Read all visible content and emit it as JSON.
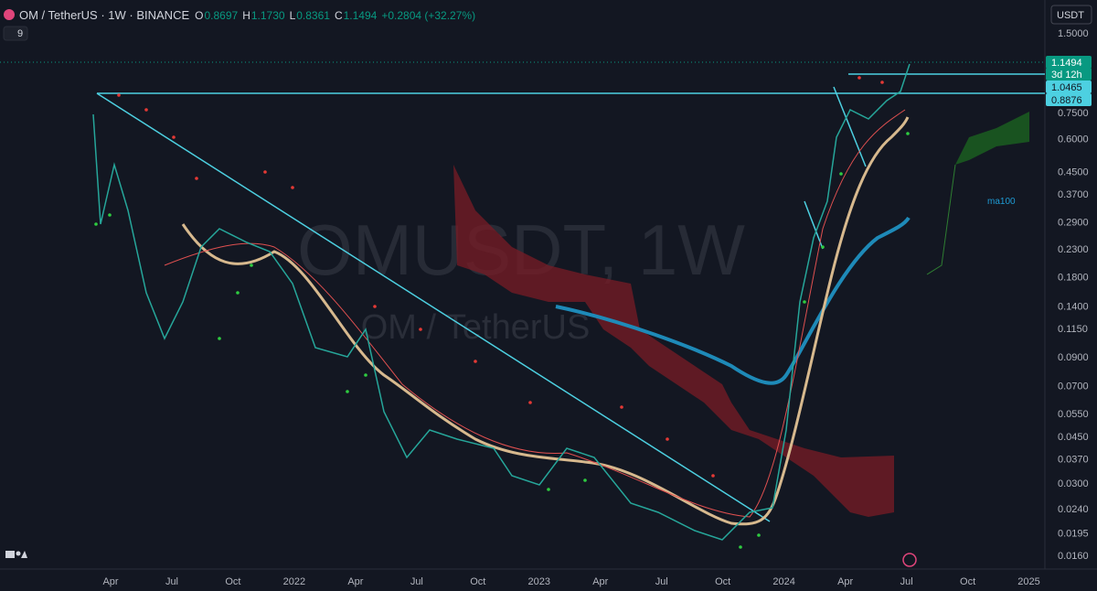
{
  "header": {
    "symbol": "OM / TetherUS · 1W · BINANCE",
    "ohlc": [
      [
        "O",
        "0.8697"
      ],
      [
        "H",
        "1.1730"
      ],
      [
        "L",
        "0.8361"
      ],
      [
        "C",
        "1.1494"
      ]
    ],
    "change": "+0.2804 (+32.27%)",
    "indicator_count": "9"
  },
  "price_axis": {
    "currency": "USDT",
    "labels": [
      "1.5000",
      "0.7500",
      "0.6000",
      "0.4500",
      "0.3700",
      "0.2900",
      "0.2300",
      "0.1800",
      "0.1400",
      "0.1150",
      "0.0900",
      "0.0700",
      "0.0550",
      "0.0450",
      "0.0370",
      "0.0300",
      "0.0240",
      "0.0195",
      "0.0160"
    ],
    "last_price": "1.1494",
    "countdown": "3d 12h",
    "levels": [
      "1.0465",
      "0.8876"
    ]
  },
  "time_axis": {
    "labels": [
      "Apr",
      "Jul",
      "Oct",
      "2022",
      "Apr",
      "Jul",
      "Oct",
      "2023",
      "Apr",
      "Jul",
      "Oct",
      "2024",
      "Apr",
      "Jul",
      "Oct",
      "2025"
    ]
  },
  "watermark": {
    "title": "OMUSDT, 1W",
    "subtitle": "OM / TetherUS"
  },
  "indicator_label": "ma100"
}
